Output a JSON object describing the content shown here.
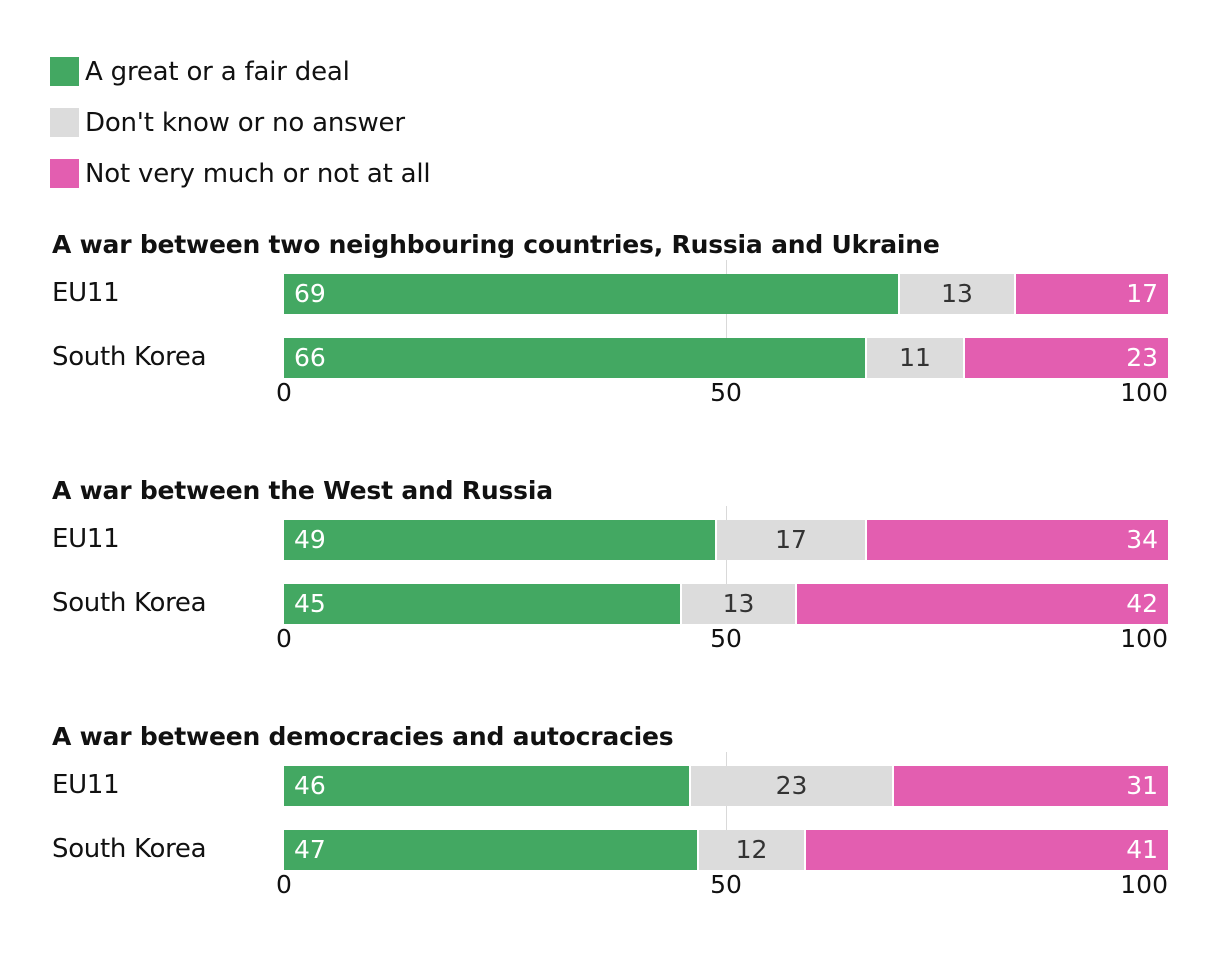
{
  "legend": [
    {
      "label": "A great or a fair deal",
      "color": "#43a862"
    },
    {
      "label": "Don't know or no answer",
      "color": "#dcdcdc"
    },
    {
      "label": "Not very much or not at all",
      "color": "#e35eb0"
    }
  ],
  "chart_data": {
    "type": "bar",
    "orientation": "horizontal",
    "stacked": true,
    "xlim": [
      0,
      100
    ],
    "ticks": [
      "0",
      "50",
      "100"
    ],
    "series_names": [
      "A great or a fair deal",
      "Don't know or no answer",
      "Not very much or not at all"
    ],
    "panels": [
      {
        "title": "A war between two neighbouring countries, Russia and Ukraine",
        "rows": [
          {
            "label": "EU11",
            "values": [
              69,
              13,
              17
            ]
          },
          {
            "label": "South Korea",
            "values": [
              66,
              11,
              23
            ]
          }
        ]
      },
      {
        "title": "A war between the West and Russia",
        "rows": [
          {
            "label": "EU11",
            "values": [
              49,
              17,
              34
            ]
          },
          {
            "label": "South Korea",
            "values": [
              45,
              13,
              42
            ]
          }
        ]
      },
      {
        "title": "A war between democracies and autocracies",
        "rows": [
          {
            "label": "EU11",
            "values": [
              46,
              23,
              31
            ]
          },
          {
            "label": "South Korea",
            "values": [
              47,
              12,
              41
            ]
          }
        ]
      }
    ]
  }
}
